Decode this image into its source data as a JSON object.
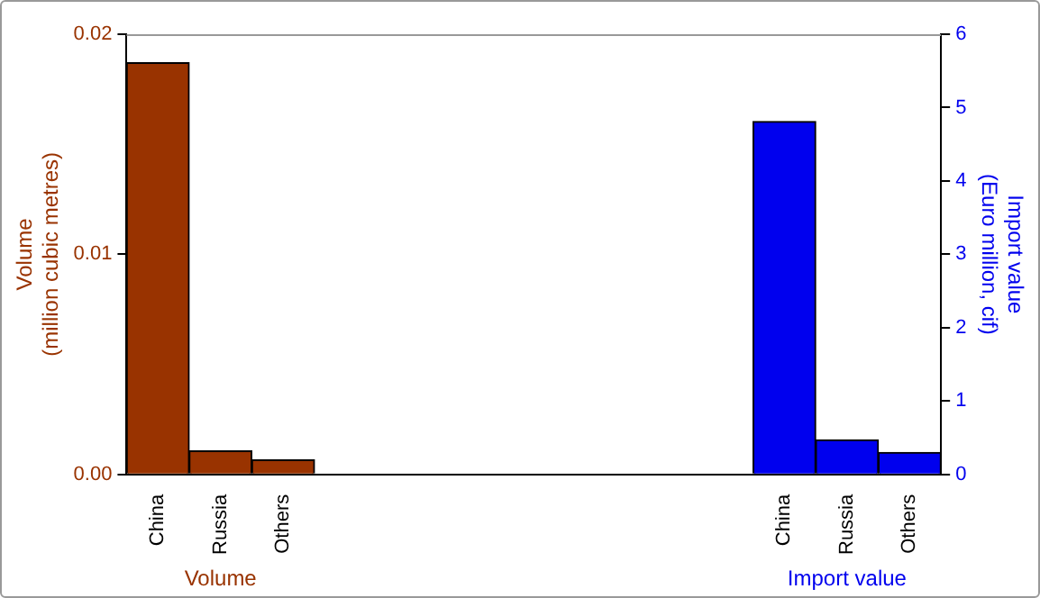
{
  "chart_data": {
    "type": "bar",
    "ylabel": "Volume\n(million cubic metres)",
    "y2label": "Import value\n(Euro million, cif)",
    "categories": [
      "China",
      "Russia",
      "Others",
      null,
      null,
      null,
      null,
      null,
      null,
      null,
      "China",
      "Russia",
      "Others"
    ],
    "series": [
      {
        "color": "#993300",
        "values": [
          0.0187,
          0.00107,
          0.00066,
          null,
          null,
          null,
          null,
          null,
          null,
          null,
          null,
          null,
          null
        ]
      },
      {
        "color": "#0000ee",
        "axis": "y2",
        "values": [
          null,
          null,
          null,
          null,
          null,
          null,
          null,
          null,
          null,
          null,
          4.81,
          0.47,
          0.3
        ]
      }
    ],
    "ylim": [
      0,
      0.02
    ],
    "yticks": [
      {
        "value": 0,
        "label": "0.00"
      },
      {
        "value": 0.01,
        "label": "0.01"
      },
      {
        "value": 0.02,
        "label": "0.02"
      }
    ],
    "y2lim": [
      0,
      6
    ],
    "y2ticks": [
      0,
      1,
      2,
      3,
      4,
      5,
      6
    ],
    "annotations": [
      "Volume",
      "Import value"
    ],
    "grid": false,
    "legend": false
  }
}
